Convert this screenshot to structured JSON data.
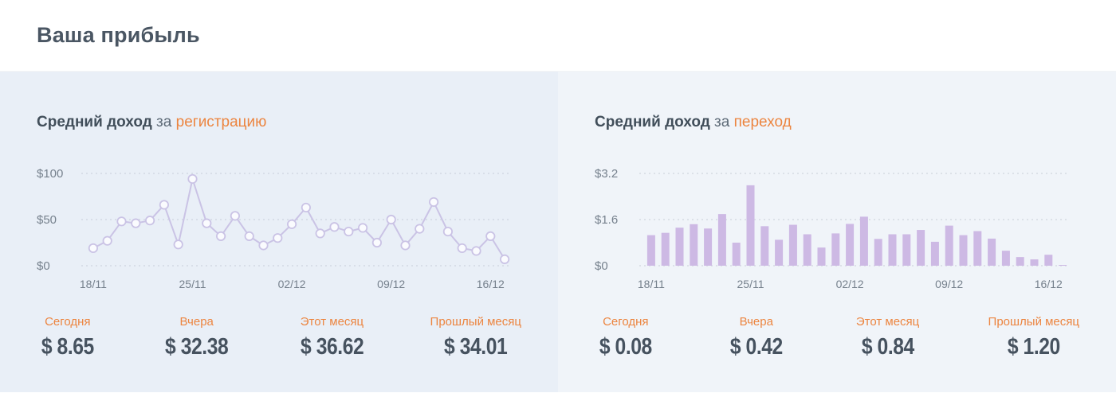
{
  "page": {
    "title": "Ваша прибыль"
  },
  "colors": {
    "accent_orange": "#ec8540",
    "title_dark": "#414e5a",
    "value_dark": "#46525f",
    "axis_text": "#76818d",
    "gridline": "#c7ced8",
    "line_stroke": "#cac3e5",
    "marker_fill": "#fafbfe",
    "bar_fill": "#cdb9e4",
    "panel_left_bg": "#e9eff7",
    "panel_right_bg": "#f0f4f9",
    "header_bg": "#ffffff"
  },
  "panels": [
    {
      "title": {
        "bold": "Средний доход",
        "mid": " за ",
        "accent": "регистрацию"
      },
      "stats": [
        {
          "label": "Сегодня",
          "value": "$ 8.65"
        },
        {
          "label": "Вчера",
          "value": "$ 32.38"
        },
        {
          "label": "Этот месяц",
          "value": "$ 36.62"
        },
        {
          "label": "Прошлый месяц",
          "value": "$ 34.01"
        }
      ]
    },
    {
      "title": {
        "bold": "Средний доход",
        "mid": " за ",
        "accent": "переход"
      },
      "stats": [
        {
          "label": "Сегодня",
          "value": "$ 0.08"
        },
        {
          "label": "Вчера",
          "value": "$ 0.42"
        },
        {
          "label": "Этот месяц",
          "value": "$ 0.84"
        },
        {
          "label": "Прошлый месяц",
          "value": "$ 1.20"
        }
      ]
    }
  ],
  "chart_data": [
    {
      "type": "line",
      "title": "Средний доход за регистрацию",
      "marker": "open-circle",
      "grid": "dotted-horizontal",
      "ylim": [
        0,
        100
      ],
      "y_ticks": [
        0,
        50,
        100
      ],
      "y_tick_labels": [
        "$0",
        "$50",
        "$100"
      ],
      "x_tick_labels": [
        "18/11",
        "25/11",
        "02/12",
        "09/12",
        "16/12"
      ],
      "x_tick_indices": [
        0,
        7,
        14,
        21,
        28
      ],
      "values": [
        19,
        27,
        48,
        46,
        49,
        66,
        23,
        94,
        46,
        32,
        54,
        32,
        22,
        30,
        45,
        63,
        35,
        42,
        37,
        41,
        25,
        50,
        22,
        40,
        69,
        37,
        19,
        16,
        32,
        7
      ]
    },
    {
      "type": "bar",
      "title": "Средний доход за переход",
      "grid": "dotted-horizontal",
      "ylim": [
        0,
        3.2
      ],
      "y_ticks": [
        0,
        1.6,
        3.2
      ],
      "y_tick_labels": [
        "$0",
        "$1.6",
        "$3.2"
      ],
      "x_tick_labels": [
        "18/11",
        "25/11",
        "02/12",
        "09/12",
        "16/12"
      ],
      "x_tick_indices": [
        0,
        7,
        14,
        21,
        28
      ],
      "values": [
        1.06,
        1.14,
        1.32,
        1.44,
        1.29,
        1.79,
        0.8,
        2.79,
        1.37,
        0.9,
        1.42,
        1.09,
        0.63,
        1.12,
        1.45,
        1.7,
        0.93,
        1.09,
        1.09,
        1.24,
        0.83,
        1.39,
        1.06,
        1.2,
        0.94,
        0.52,
        0.3,
        0.22,
        0.38,
        0.02
      ]
    }
  ]
}
